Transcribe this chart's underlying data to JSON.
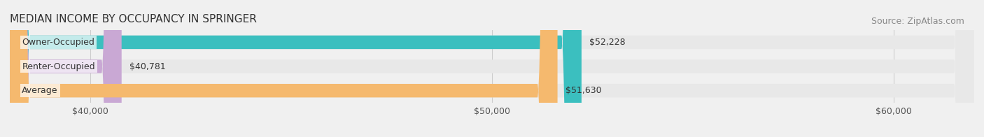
{
  "title": "MEDIAN INCOME BY OCCUPANCY IN SPRINGER",
  "source": "Source: ZipAtlas.com",
  "categories": [
    "Owner-Occupied",
    "Renter-Occupied",
    "Average"
  ],
  "values": [
    52228,
    40781,
    51630
  ],
  "bar_colors": [
    "#3bbfbf",
    "#c9a8d4",
    "#f5b96e"
  ],
  "bar_labels": [
    "$52,228",
    "$40,781",
    "$51,630"
  ],
  "xlim": [
    38000,
    62000
  ],
  "xticks": [
    40000,
    50000,
    60000
  ],
  "xtick_labels": [
    "$40,000",
    "$50,000",
    "$60,000"
  ],
  "background_color": "#f0f0f0",
  "bar_bg_color": "#e8e8e8",
  "title_fontsize": 11,
  "source_fontsize": 9,
  "label_fontsize": 9,
  "tick_fontsize": 9
}
